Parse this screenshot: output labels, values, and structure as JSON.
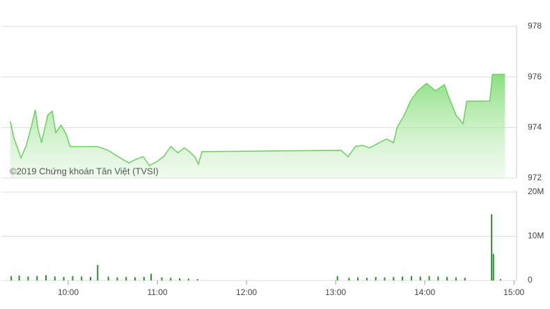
{
  "chart_data": [
    {
      "type": "area",
      "x": [
        9.35,
        9.39,
        9.47,
        9.53,
        9.59,
        9.63,
        9.66,
        9.7,
        9.77,
        9.82,
        9.86,
        9.92,
        9.98,
        10.02,
        10.09,
        10.17,
        10.33,
        10.45,
        10.56,
        10.68,
        10.76,
        10.84,
        10.91,
        10.99,
        11.07,
        11.15,
        11.23,
        11.3,
        11.36,
        11.42,
        11.46,
        11.5,
        13.06,
        13.14,
        13.22,
        13.3,
        13.38,
        13.49,
        13.57,
        13.65,
        13.69,
        13.77,
        13.84,
        13.92,
        14.02,
        14.12,
        14.22,
        14.27,
        14.35,
        14.43,
        14.47,
        14.73,
        14.76,
        14.9
      ],
      "values": [
        974.25,
        973.6,
        972.8,
        973.3,
        974.1,
        974.7,
        973.95,
        973.4,
        974.5,
        974.65,
        973.8,
        974.1,
        973.7,
        973.25,
        973.25,
        973.25,
        973.25,
        973.1,
        972.85,
        972.6,
        972.75,
        972.85,
        972.5,
        972.65,
        972.85,
        973.25,
        973.0,
        973.2,
        973.05,
        972.85,
        972.55,
        973.05,
        973.1,
        972.85,
        973.25,
        973.3,
        973.2,
        973.4,
        973.55,
        973.4,
        974.0,
        974.5,
        975.05,
        975.45,
        975.75,
        975.45,
        975.7,
        975.2,
        974.5,
        974.15,
        975.05,
        975.05,
        976.1,
        976.1
      ],
      "color": "#6ccf5f",
      "xlim": [
        9.25,
        15.03
      ],
      "ylim": [
        972,
        978
      ],
      "yticks": [
        972,
        974,
        976,
        978
      ],
      "grid": true,
      "annotation": "©2019 Chứng khoán Tân Việt (TVSI)"
    },
    {
      "type": "bar",
      "x": [
        9.36,
        9.45,
        9.55,
        9.65,
        9.75,
        9.85,
        9.95,
        10.05,
        10.15,
        10.25,
        10.33,
        10.45,
        10.55,
        10.65,
        10.75,
        10.85,
        10.93,
        11.05,
        11.15,
        11.25,
        11.35,
        11.45,
        13.02,
        13.15,
        13.25,
        13.35,
        13.45,
        13.55,
        13.65,
        13.75,
        13.85,
        13.95,
        14.05,
        14.15,
        14.25,
        14.35,
        14.45,
        14.75,
        14.77,
        14.85
      ],
      "values": [
        1000000,
        1100000,
        900000,
        1000000,
        1200000,
        900000,
        800000,
        1000000,
        900000,
        800000,
        3500000,
        900000,
        700000,
        800000,
        700000,
        800000,
        1500000,
        700000,
        600000,
        500000,
        400000,
        300000,
        1000000,
        600000,
        700000,
        600000,
        800000,
        700000,
        800000,
        900000,
        1000000,
        900000,
        1000000,
        900000,
        800000,
        700000,
        600000,
        15000000,
        6000000,
        300000
      ],
      "color": "#2e8b2e",
      "xlim": [
        9.25,
        15.03
      ],
      "ylim": [
        0,
        20000000
      ],
      "yticks": [
        0,
        {
          "value": 10000000,
          "label": "10M"
        },
        {
          "value": 20000000,
          "label": "20M"
        }
      ],
      "xticks": [
        {
          "value": 10,
          "label": "10:00"
        },
        {
          "value": 11,
          "label": "11:00"
        },
        {
          "value": 12,
          "label": "12:00"
        },
        {
          "value": 13,
          "label": "13:00"
        },
        {
          "value": 14,
          "label": "14:00"
        },
        {
          "value": 15,
          "label": "15:00"
        }
      ],
      "grid": true
    }
  ]
}
